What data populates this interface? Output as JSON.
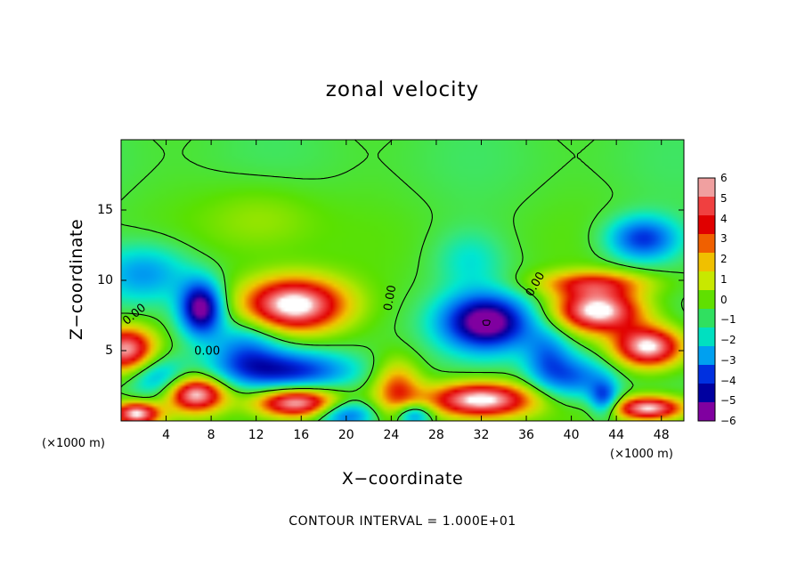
{
  "chart_data": {
    "type": "heatmap",
    "title": "zonal velocity",
    "xlabel": "X−coordinate",
    "ylabel": "Z−coordinate",
    "x_unit_left": "(×1000 m)",
    "x_unit_right": "(×1000 m)",
    "xlim": [
      0,
      50
    ],
    "ylim": [
      0,
      20
    ],
    "x_ticks": [
      4,
      8,
      12,
      16,
      20,
      24,
      28,
      32,
      36,
      40,
      44,
      48
    ],
    "x_tick_labels": [
      "4",
      "8",
      "12",
      "16",
      "20",
      "24",
      "28",
      "32",
      "36",
      "40",
      "44",
      "48"
    ],
    "y_ticks": [
      5,
      10,
      15
    ],
    "y_tick_labels": [
      "5",
      "10",
      "15"
    ],
    "colorbar_ticks": [
      "6",
      "5",
      "4",
      "3",
      "2",
      "1",
      "0",
      "−1",
      "−2",
      "−3",
      "−4",
      "−5",
      "−6"
    ],
    "colorbar_range": [
      -6,
      6
    ],
    "colorbar_colors": [
      "#f0a0a0",
      "#f04040",
      "#e00000",
      "#f06000",
      "#f0c000",
      "#c8e800",
      "#60e000",
      "#30e060",
      "#00e0c0",
      "#00a0f0",
      "#0030e0",
      "#0000a0",
      "#8000a0"
    ],
    "contour_labels": [
      "0.00",
      "0.00",
      "0.00",
      "0.00",
      "0.00"
    ],
    "contour_interval_text": "CONTOUR INTERVAL = 1.000E+01",
    "blobs": [
      {
        "x": 0.3,
        "z": 5.0,
        "u": 6.5,
        "rx": 2.5,
        "rz": 1.6
      },
      {
        "x": 1.2,
        "z": 0.4,
        "u": 6.5,
        "rx": 2.0,
        "rz": 0.8
      },
      {
        "x": 6.5,
        "z": 1.8,
        "u": 6.5,
        "rx": 2.5,
        "rz": 1.2
      },
      {
        "x": 15.2,
        "z": 8.2,
        "u": 7.5,
        "rx": 4.5,
        "rz": 1.9
      },
      {
        "x": 15.5,
        "z": 1.2,
        "u": 6.5,
        "rx": 3.5,
        "rz": 1.0
      },
      {
        "x": 24.5,
        "z": 2.2,
        "u": 3.5,
        "rx": 2.0,
        "rz": 2.0
      },
      {
        "x": 32.0,
        "z": 1.4,
        "u": 7.0,
        "rx": 4.5,
        "rz": 1.2
      },
      {
        "x": 42.5,
        "z": 7.8,
        "u": 7.0,
        "rx": 3.8,
        "rz": 1.5
      },
      {
        "x": 47.0,
        "z": 5.2,
        "u": 7.0,
        "rx": 3.0,
        "rz": 1.4
      },
      {
        "x": 47.0,
        "z": 0.8,
        "u": 6.5,
        "rx": 3.0,
        "rz": 0.8
      },
      {
        "x": 42.0,
        "z": 9.8,
        "u": 3.5,
        "rx": 5.0,
        "rz": 0.9
      },
      {
        "x": 12.5,
        "z": 14.5,
        "u": 1.2,
        "rx": 5.0,
        "rz": 2.5
      },
      {
        "x": 7.0,
        "z": 8.0,
        "u": -7.0,
        "rx": 1.8,
        "rz": 1.8
      },
      {
        "x": 32.5,
        "z": 7.0,
        "u": -7.0,
        "rx": 3.8,
        "rz": 1.9
      },
      {
        "x": 2.0,
        "z": 10.5,
        "u": -3.0,
        "rx": 4.0,
        "rz": 2.0
      },
      {
        "x": 15.0,
        "z": 3.5,
        "u": -4.5,
        "rx": 5.5,
        "rz": 1.3
      },
      {
        "x": 3.0,
        "z": 3.0,
        "u": -3.0,
        "rx": 2.5,
        "rz": 1.5
      },
      {
        "x": 46.5,
        "z": 13.0,
        "u": -4.5,
        "rx": 3.0,
        "rz": 1.5
      },
      {
        "x": 40.5,
        "z": 3.0,
        "u": -3.5,
        "rx": 3.0,
        "rz": 1.5
      },
      {
        "x": 31.0,
        "z": 11.5,
        "u": -1.5,
        "rx": 3.0,
        "rz": 2.0
      },
      {
        "x": 20.0,
        "z": 0.3,
        "u": -4.0,
        "rx": 2.5,
        "rz": 1.0
      },
      {
        "x": 26.0,
        "z": 0.3,
        "u": -4.0,
        "rx": 1.5,
        "rz": 0.8
      },
      {
        "x": 43.0,
        "z": 1.5,
        "u": -4.0,
        "rx": 1.2,
        "rz": 1.2
      },
      {
        "x": 11.0,
        "z": 5.0,
        "u": -3.0,
        "rx": 3.0,
        "rz": 2.0
      },
      {
        "x": 38.0,
        "z": 4.5,
        "u": -3.0,
        "rx": 2.0,
        "rz": 2.0
      }
    ]
  }
}
